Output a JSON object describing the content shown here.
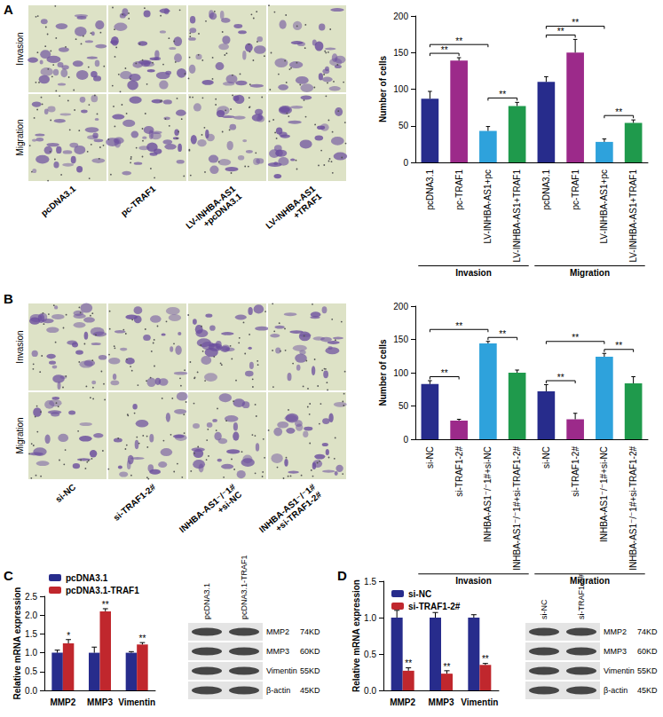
{
  "panel_labels": [
    "A",
    "B",
    "C",
    "D"
  ],
  "micrographs": [
    {
      "rows": [
        "Invasion",
        "Migration"
      ],
      "columns": [
        "pcDNA3.1",
        "pc-TRAF1",
        "LV-INHBA-AS1\n+pcDNA3.1",
        "LV-INHBA-AS1\n+TRAF1"
      ]
    },
    {
      "rows": [
        "Invasion",
        "Migration"
      ],
      "columns": [
        "si-NC",
        "si-TRAF1-2#",
        "INHBA-AS1⁻/⁻1#\n+si-NC",
        "INHBA-AS1⁻/⁻1#\n+si-TRAF1-2#"
      ]
    }
  ],
  "blots": [
    {
      "lanes": [
        "pcDNA3.1",
        "pcDNA3.1-TRAF1"
      ],
      "bands": [
        {
          "name": "MMP2",
          "size": "74KD"
        },
        {
          "name": "MMP3",
          "size": "60KD"
        },
        {
          "name": "Vimentin",
          "size": "55KD"
        },
        {
          "name": "β-actin",
          "size": "45KD"
        }
      ]
    },
    {
      "lanes": [
        "si-NC",
        "si-TRAF1-2#"
      ],
      "bands": [
        {
          "name": "MMP2",
          "size": "74KD"
        },
        {
          "name": "MMP3",
          "size": "60KD"
        },
        {
          "name": "Vimentin",
          "size": "55KD"
        },
        {
          "name": "β-actin",
          "size": "45KD"
        }
      ]
    }
  ],
  "chart_data": [
    {
      "type": "bar",
      "y_label": "Number of cells",
      "categories": [
        "pcDNA3.1",
        "pc-TRAF1",
        "LV-INHBA-AS1+pc",
        "LV-INHBA-AS1+TRAF1",
        "pcDNA3.1",
        "pc-TRAF1",
        "LV-INHBA-AS1+pc",
        "LV-INHBA-AS1+TRAF1"
      ],
      "values": [
        87,
        139,
        43,
        77,
        110,
        150,
        28,
        54
      ],
      "errors": [
        10,
        4,
        6,
        5,
        7,
        18,
        4,
        4
      ],
      "colors": [
        "#272c8c",
        "#9c2a8a",
        "#2ea2dc",
        "#1f9a4c",
        "#272c8c",
        "#9c2a8a",
        "#2ea2dc",
        "#1f9a4c"
      ],
      "ylim": [
        0,
        200
      ],
      "yticks": [
        0,
        50,
        100,
        150,
        200
      ],
      "grid": false,
      "groups": [
        {
          "label": "Invasion",
          "from": 0,
          "to": 3
        },
        {
          "label": "Migration",
          "from": 4,
          "to": 7
        }
      ],
      "significance": [
        {
          "from": 0,
          "to": 1,
          "label": "**"
        },
        {
          "from": 0,
          "to": 2,
          "label": "**"
        },
        {
          "from": 2,
          "to": 3,
          "label": "**"
        },
        {
          "from": 4,
          "to": 5,
          "label": "**"
        },
        {
          "from": 4,
          "to": 6,
          "label": "**"
        },
        {
          "from": 6,
          "to": 7,
          "label": "**"
        }
      ]
    },
    {
      "type": "bar",
      "y_label": "Number of cells",
      "categories": [
        "si-NC",
        "si-TRAF1-2#",
        "INHBA-AS1⁻/⁻1#+si-NC",
        "INHBA-AS1⁻/⁻1#+si-TRAF1-2#",
        "si-NC",
        "si-TRAF1-2#",
        "INHBA-AS1⁻/⁻1#+si-NC",
        "INHBA-AS1⁻/⁻1#+si-TRAF1-2#"
      ],
      "values": [
        83,
        28,
        144,
        100,
        72,
        30,
        124,
        84
      ],
      "errors": [
        5,
        2,
        3,
        4,
        10,
        9,
        5,
        10
      ],
      "colors": [
        "#272c8c",
        "#9c2a8a",
        "#2ea2dc",
        "#1f9a4c",
        "#272c8c",
        "#9c2a8a",
        "#2ea2dc",
        "#1f9a4c"
      ],
      "ylim": [
        0,
        200
      ],
      "yticks": [
        0,
        50,
        100,
        150,
        200
      ],
      "grid": false,
      "groups": [
        {
          "label": "Invasion",
          "from": 0,
          "to": 3
        },
        {
          "label": "Migration",
          "from": 4,
          "to": 7
        }
      ],
      "significance": [
        {
          "from": 0,
          "to": 1,
          "label": "**"
        },
        {
          "from": 0,
          "to": 2,
          "label": "**"
        },
        {
          "from": 2,
          "to": 3,
          "label": "**"
        },
        {
          "from": 4,
          "to": 5,
          "label": "**"
        },
        {
          "from": 4,
          "to": 6,
          "label": "**"
        },
        {
          "from": 6,
          "to": 7,
          "label": "**"
        }
      ]
    },
    {
      "type": "bar",
      "y_label": "Relative mRNA expression",
      "categories": [
        "MMP2",
        "MMP3",
        "Vimentin"
      ],
      "series": [
        {
          "name": "pcDNA3.1",
          "color": "#272c8c",
          "values": [
            1.0,
            1.0,
            1.0
          ],
          "errors": [
            0.07,
            0.15,
            0.03
          ]
        },
        {
          "name": "pcDNA3.1-TRAF1",
          "color": "#c0272d",
          "values": [
            1.25,
            2.1,
            1.22
          ],
          "errors": [
            0.1,
            0.07,
            0.05
          ]
        }
      ],
      "ylim": [
        0,
        2.5
      ],
      "yticks": [
        {
          "value": 0,
          "label": "0.0"
        },
        {
          "value": 0.5,
          "label": "0.5"
        },
        {
          "value": 1,
          "label": "1.0"
        },
        {
          "value": 1.5,
          "label": "1.5"
        },
        {
          "value": 2,
          "label": "2.0"
        },
        {
          "value": 2.5,
          "label": "2.5"
        }
      ],
      "grid": false,
      "legend": "top-left",
      "significance": [
        {
          "category": 0,
          "series": 1,
          "label": "*"
        },
        {
          "category": 1,
          "series": 1,
          "label": "**"
        },
        {
          "category": 2,
          "series": 1,
          "label": "**"
        }
      ]
    },
    {
      "type": "bar",
      "y_label": "Relative mRNA expression",
      "categories": [
        "MMP2",
        "MMP3",
        "Vimentin"
      ],
      "series": [
        {
          "name": "si-NC",
          "color": "#272c8c",
          "values": [
            1.0,
            1.0,
            1.0
          ],
          "errors": [
            0.1,
            0.07,
            0.04
          ]
        },
        {
          "name": "si-TRAF1-2#",
          "color": "#c0272d",
          "values": [
            0.27,
            0.23,
            0.35
          ],
          "errors": [
            0.04,
            0.04,
            0.02
          ]
        }
      ],
      "ylim": [
        0,
        1.5
      ],
      "yticks": [
        {
          "value": 0,
          "label": "0.0"
        },
        {
          "value": 0.5,
          "label": "0.5"
        },
        {
          "value": 1,
          "label": "1.0"
        },
        {
          "value": 1.5,
          "label": "1.5"
        }
      ],
      "grid": false,
      "legend": "top-left",
      "significance": [
        {
          "category": 0,
          "series": 1,
          "label": "**"
        },
        {
          "category": 1,
          "series": 1,
          "label": "**"
        },
        {
          "category": 2,
          "series": 1,
          "label": "**"
        }
      ]
    }
  ]
}
